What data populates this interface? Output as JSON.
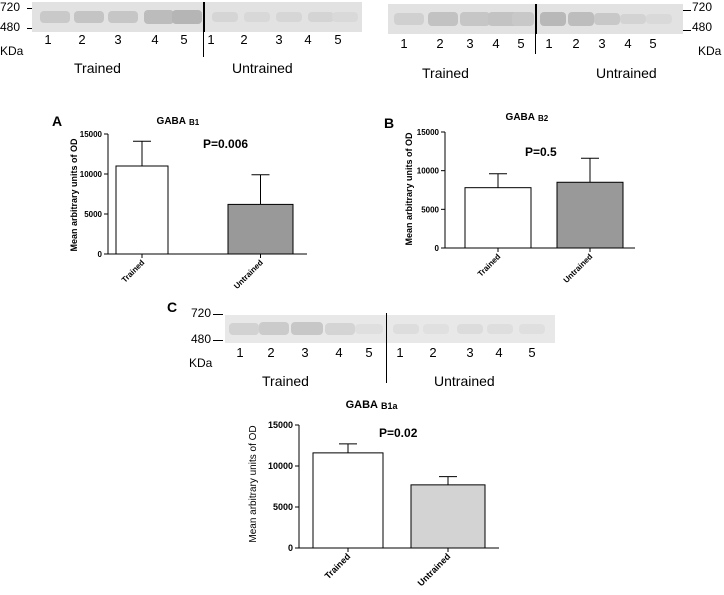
{
  "blots": {
    "mw_marks": [
      "720",
      "480"
    ],
    "kda": "KDa",
    "lanes": [
      "1",
      "2",
      "3",
      "4",
      "5"
    ],
    "trained": "Trained",
    "untrained": "Untrained"
  },
  "panels": {
    "A": "A",
    "B": "B",
    "C": "C"
  },
  "chart_data": [
    {
      "type": "bar",
      "panel": "A",
      "title_main": "GABA",
      "title_sub": "B1",
      "annotation": "P=0.006",
      "ylabel": "Mean arbitrary units of OD",
      "categories": [
        "Trained",
        "Untrained"
      ],
      "values": [
        11000,
        6200
      ],
      "errors": [
        3100,
        3700
      ],
      "ylim": [
        0,
        15000
      ],
      "yticks": [
        "0",
        "5000",
        "10000",
        "15000"
      ],
      "colors": [
        "#ffffff",
        "#999999"
      ]
    },
    {
      "type": "bar",
      "panel": "B",
      "title_main": "GABA",
      "title_sub": "B2",
      "annotation": "P=0.5",
      "ylabel": "Mean arbitrary units of OD",
      "categories": [
        "Trained",
        "Untrained"
      ],
      "values": [
        7800,
        8500
      ],
      "errors": [
        1800,
        3100
      ],
      "ylim": [
        0,
        15000
      ],
      "yticks": [
        "0",
        "5000",
        "10000",
        "15000"
      ],
      "colors": [
        "#ffffff",
        "#999999"
      ]
    },
    {
      "type": "bar",
      "panel": "C",
      "title_main": "GABA",
      "title_sub": "B1a",
      "annotation": "P=0.02",
      "ylabel": "Mean arbitrary units of OD",
      "categories": [
        "Trained",
        "Untrained"
      ],
      "values": [
        11600,
        7700
      ],
      "errors": [
        1100,
        1000
      ],
      "ylim": [
        0,
        15000
      ],
      "yticks": [
        "0",
        "5000",
        "10000",
        "15000"
      ],
      "colors": [
        "#ffffff",
        "#d3d3d3"
      ]
    }
  ]
}
